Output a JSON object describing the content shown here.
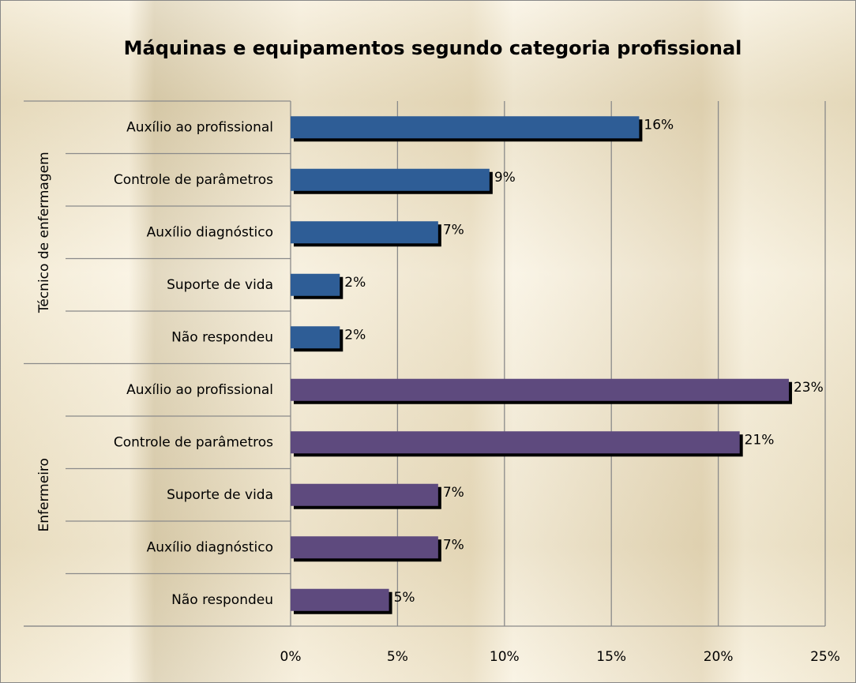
{
  "chart_data": {
    "type": "bar",
    "orientation": "horizontal",
    "title": "Máquinas e equipamentos segundo categoria profissional",
    "groups": [
      {
        "name": "Técnico de enfermagem",
        "color": "#2e5d96",
        "categories": [
          "Auxílio ao profissional",
          "Controle de parâmetros",
          "Auxílio diagnóstico",
          "Suporte de vida",
          "Não respondeu"
        ],
        "values": [
          16.3,
          9.3,
          6.9,
          2.3,
          2.3
        ],
        "value_labels": [
          "16%",
          "9%",
          "7%",
          "2%",
          "2%"
        ]
      },
      {
        "name": "Enfermeiro",
        "color": "#5e4a7e",
        "categories": [
          "Auxílio ao profissional",
          "Controle de parâmetros",
          "Suporte de vida",
          "Auxílio diagnóstico",
          "Não respondeu"
        ],
        "values": [
          23.3,
          21.0,
          6.9,
          6.9,
          4.6
        ],
        "value_labels": [
          "23%",
          "21%",
          "7%",
          "7%",
          "5%"
        ]
      }
    ],
    "xlim": [
      0,
      25
    ],
    "xticks": [
      {
        "value": 0,
        "label": "0%"
      },
      {
        "value": 5,
        "label": "5%"
      },
      {
        "value": 10,
        "label": "10%"
      },
      {
        "value": 15,
        "label": "15%"
      },
      {
        "value": 20,
        "label": "20%"
      },
      {
        "value": 25,
        "label": "25%"
      }
    ],
    "grid": true
  }
}
